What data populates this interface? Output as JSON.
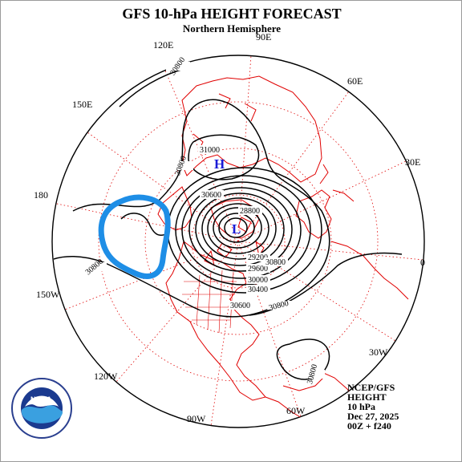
{
  "header": {
    "title": "GFS 10-hPa HEIGHT FORECAST",
    "subtitle": "Northern Hemisphere"
  },
  "longitude_labels": [
    "90E",
    "60E",
    "30E",
    "0",
    "30W",
    "60W",
    "90W",
    "120W",
    "150W",
    "180",
    "150E",
    "120E"
  ],
  "pressure_centers": {
    "high": "H",
    "low": "L"
  },
  "contour_labels": [
    "30800",
    "31000",
    "30800",
    "30600",
    "28800",
    "29200",
    "29600",
    "30000",
    "30400",
    "30800",
    "30600",
    "30800",
    "30800",
    "30800"
  ],
  "info": {
    "source": "NCEP/GFS",
    "variable": "HEIGHT",
    "level": "10 hPa",
    "date": "Dec 27, 2025",
    "run": "00Z + f240"
  },
  "logo": {
    "name": "NOAA",
    "ring_text": "NATIONAL OCEANIC AND ATMOSPHERIC ADMINISTRATION · U.S. DEPARTMENT OF COMMERCE"
  },
  "colors": {
    "coastline": "#e00000",
    "graticule": "#e00000",
    "contour": "#000000",
    "center_label": "#1a1ad6",
    "highlight": "#1e8ee6"
  }
}
